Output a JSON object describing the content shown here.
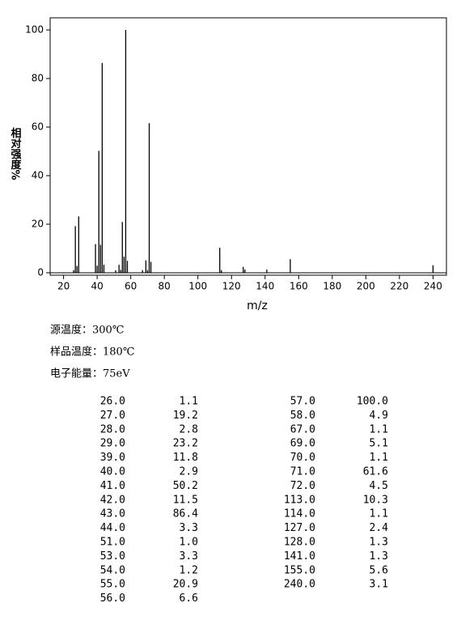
{
  "chart_data": {
    "type": "stick",
    "xlabel": "m/z",
    "ylabel": "相对强度%",
    "x": [
      26,
      27,
      28,
      29,
      39,
      40,
      41,
      42,
      43,
      44,
      51,
      53,
      54,
      55,
      56,
      57,
      58,
      67,
      69,
      70,
      71,
      72,
      113,
      114,
      127,
      128,
      141,
      155,
      240
    ],
    "values": [
      1.1,
      19.2,
      2.8,
      23.2,
      11.8,
      2.9,
      50.2,
      11.5,
      86.4,
      3.3,
      1.0,
      3.3,
      1.2,
      20.9,
      6.6,
      100.0,
      4.9,
      1.1,
      5.1,
      1.1,
      61.6,
      4.5,
      10.3,
      1.1,
      2.4,
      1.3,
      1.3,
      5.6,
      3.1
    ],
    "color": "#000000",
    "xlim": [
      12,
      248
    ],
    "xticks": [
      20,
      40,
      60,
      80,
      100,
      120,
      140,
      160,
      180,
      200,
      220,
      240
    ],
    "ylim": [
      -1,
      105
    ],
    "yticks": [
      0,
      20,
      40,
      60,
      80,
      100
    ]
  },
  "conditions": [
    "源温度：300℃",
    "样品温度：180℃",
    "电子能量：75eV"
  ],
  "peak_table": {
    "left": [
      [
        "26.0",
        "1.1"
      ],
      [
        "27.0",
        "19.2"
      ],
      [
        "28.0",
        "2.8"
      ],
      [
        "29.0",
        "23.2"
      ],
      [
        "39.0",
        "11.8"
      ],
      [
        "40.0",
        "2.9"
      ],
      [
        "41.0",
        "50.2"
      ],
      [
        "42.0",
        "11.5"
      ],
      [
        "43.0",
        "86.4"
      ],
      [
        "44.0",
        "3.3"
      ],
      [
        "51.0",
        "1.0"
      ],
      [
        "53.0",
        "3.3"
      ],
      [
        "54.0",
        "1.2"
      ],
      [
        "55.0",
        "20.9"
      ],
      [
        "56.0",
        "6.6"
      ]
    ],
    "right": [
      [
        "57.0",
        "100.0"
      ],
      [
        "58.0",
        "4.9"
      ],
      [
        "67.0",
        "1.1"
      ],
      [
        "69.0",
        "5.1"
      ],
      [
        "70.0",
        "1.1"
      ],
      [
        "71.0",
        "61.6"
      ],
      [
        "72.0",
        "4.5"
      ],
      [
        "113.0",
        "10.3"
      ],
      [
        "114.0",
        "1.1"
      ],
      [
        "127.0",
        "2.4"
      ],
      [
        "128.0",
        "1.3"
      ],
      [
        "141.0",
        "1.3"
      ],
      [
        "155.0",
        "5.6"
      ],
      [
        "240.0",
        "3.1"
      ]
    ]
  }
}
